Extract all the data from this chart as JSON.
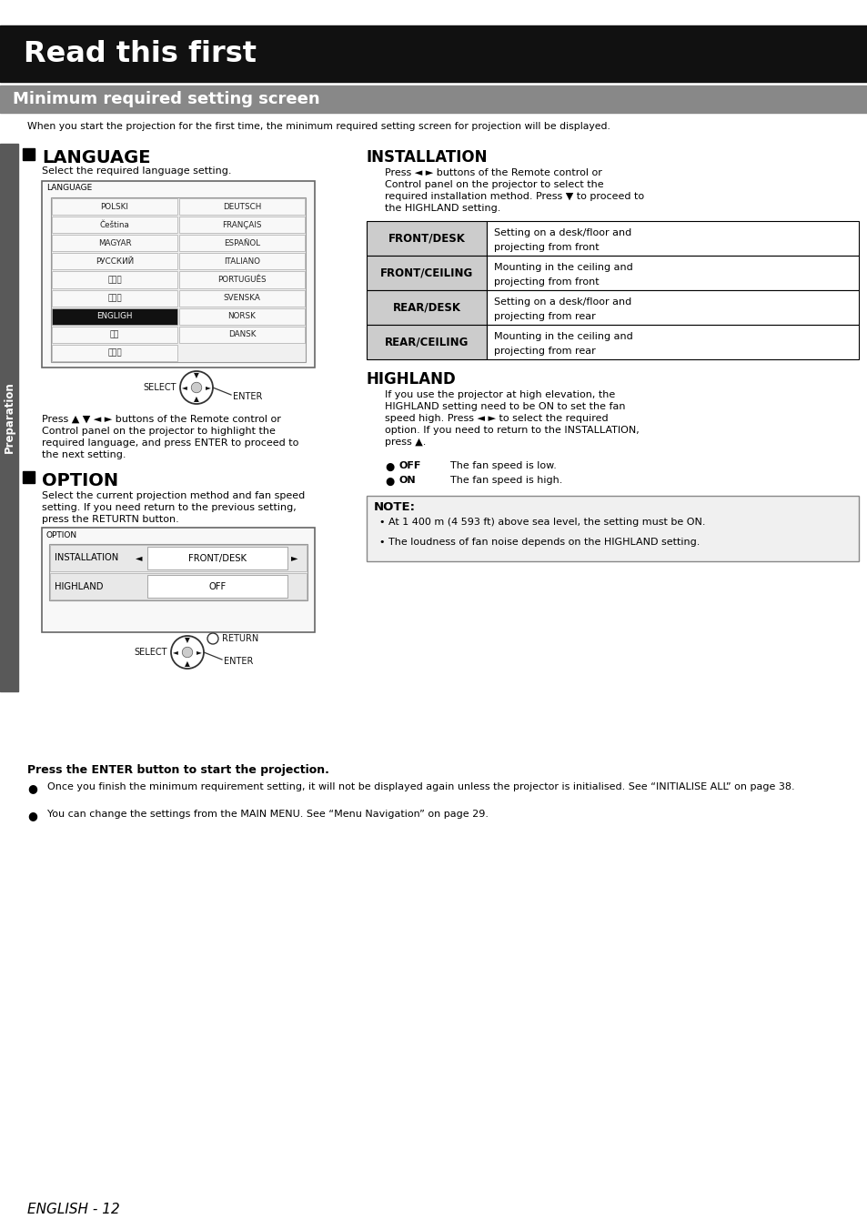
{
  "page_bg": "#ffffff",
  "header_bg": "#111111",
  "header_text": "Read this first",
  "header_text_color": "#ffffff",
  "subheader_bg": "#888888",
  "subheader_text": "Minimum required setting screen",
  "subheader_text_color": "#ffffff",
  "intro_text": "When you start the projection for the first time, the minimum required setting screen for projection will be displayed.",
  "sidebar_bg": "#595959",
  "sidebar_text": "Preparation",
  "sidebar_text_color": "#ffffff",
  "language_col1": [
    "POLSKI",
    "Čeština",
    "MAGYAR",
    "РУССКИЙ",
    "ไทย",
    "한국어",
    "ENGLIGH",
    "中文",
    "日本語"
  ],
  "language_col2": [
    "DEUTSCH",
    "FRANÇAIS",
    "ESPAÑOL",
    "ITALIANO",
    "PORTUGUÊS",
    "SVENSKA",
    "NORSK",
    "DANSK"
  ],
  "language_selected_idx": 6,
  "lang_press_lines": [
    "Press ▲ ▼ ◄ ► buttons of the Remote control or",
    "Control panel on the projector to highlight the",
    "required language, and press ENTER to proceed to",
    "the next setting."
  ],
  "option_desc_lines": [
    "Select the current projection method and fan speed",
    "setting. If you need return to the previous setting,",
    "press the RETURTN button."
  ],
  "option_row1_left": "INSTALLATION",
  "option_row1_right": "FRONT/DESK",
  "option_row2_left": "HIGHLAND",
  "option_row2_right": "OFF",
  "installation_lines": [
    "Press ◄ ► buttons of the Remote control or",
    "Control panel on the projector to select the",
    "required installation method. Press ▼ to proceed to",
    "the HIGHLAND setting."
  ],
  "table_rows": [
    {
      "label": "FRONT/DESK",
      "desc": [
        "Setting on a desk/floor and",
        "projecting from front"
      ]
    },
    {
      "label": "FRONT/CEILING",
      "desc": [
        "Mounting in the ceiling and",
        "projecting from front"
      ]
    },
    {
      "label": "REAR/DESK",
      "desc": [
        "Setting on a desk/floor and",
        "projecting from rear"
      ]
    },
    {
      "label": "REAR/CEILING",
      "desc": [
        "Mounting in the ceiling and",
        "projecting from rear"
      ]
    }
  ],
  "highland_lines": [
    "If you use the projector at high elevation, the",
    "HIGHLAND setting need to be ON to set the fan",
    "speed high. Press ◄ ► to select the required",
    "option. If you need to return to the INSTALLATION,",
    "press ▲."
  ],
  "highland_bullets": [
    {
      "label": "OFF",
      "desc": "The fan speed is low."
    },
    {
      "label": "ON",
      "desc": "The fan speed is high."
    }
  ],
  "note_bullets": [
    "At 1 400 m (4 593 ft) above sea level, the setting must be ON.",
    "The loudness of fan noise depends on the HIGHLAND setting."
  ],
  "footer_bold": "Press the ENTER button to start the projection.",
  "footer_bullets": [
    "Once you finish the minimum requirement setting, it will not be displayed again unless the projector is initialised. See “INITIALISE ALL” on page 38.",
    "You can change the settings from the MAIN MENU. See “Menu Navigation” on page 29."
  ],
  "page_number": "ENGLISH - 12"
}
